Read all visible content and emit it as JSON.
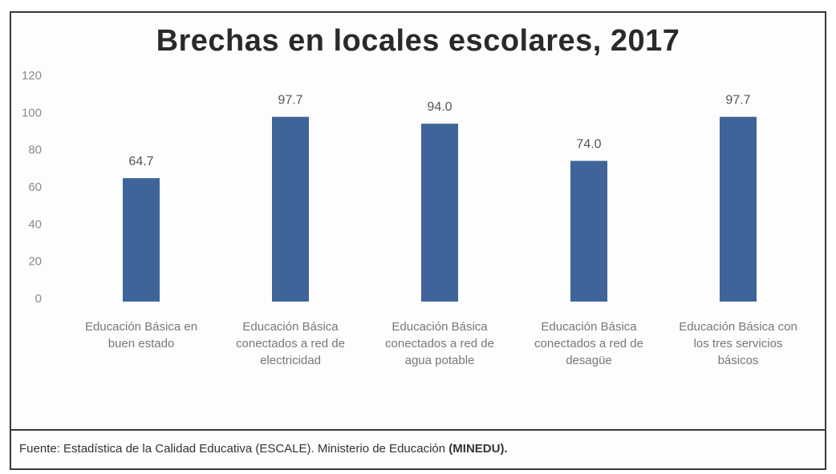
{
  "chart_data": {
    "type": "bar",
    "title": "Brechas en locales escolares, 2017",
    "categories": [
      [
        "Educación Básica en",
        "buen estado"
      ],
      [
        "Educación Básica",
        "conectados a red de",
        "electricidad"
      ],
      [
        "Educación Básica",
        "conectados a red de",
        "agua potable"
      ],
      [
        "Educación Básica",
        "conectados a red de",
        "desagüe"
      ],
      [
        "Educación Básica con",
        "los tres servicios",
        "básicos"
      ]
    ],
    "values": [
      64.7,
      97.7,
      94.0,
      74.0,
      97.7
    ],
    "value_labels": [
      "64.7",
      "97.7",
      "94.0",
      "74.0",
      "97.7"
    ],
    "ylim": [
      0,
      120
    ],
    "yticks": [
      0,
      20,
      40,
      60,
      80,
      100,
      120
    ],
    "grid": false,
    "legend": "none",
    "bar_color": "#3e6499"
  },
  "footer": {
    "source_text": "Fuente: Estadística de la Calidad Educativa (ESCALE). Ministerio de Educación ",
    "source_org": "(MINEDU)."
  }
}
